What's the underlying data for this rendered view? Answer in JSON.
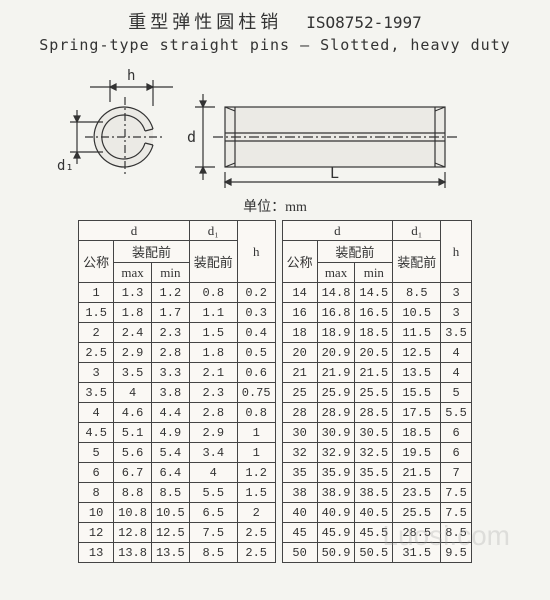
{
  "header": {
    "title_cn": "重型弹性圆柱销",
    "standard_code": "ISO8752-1997",
    "title_en": "Spring-type straight pins — Slotted, heavy duty"
  },
  "diagram": {
    "labels": {
      "h": "h",
      "d1": "d₁",
      "d": "d",
      "L": "L"
    },
    "stroke": "#333",
    "fill": "#ebeae5"
  },
  "unit_label": "单位：mm",
  "table_headers": {
    "d": "d",
    "nominal": "公称",
    "before_assembly": "装配前",
    "max": "max",
    "min": "min",
    "d1": "d₁",
    "d1_before": "装配前",
    "h": "h"
  },
  "left_rows": [
    {
      "nom": "1",
      "max": "1.3",
      "min": "1.2",
      "d1": "0.8",
      "h": "0.2"
    },
    {
      "nom": "1.5",
      "max": "1.8",
      "min": "1.7",
      "d1": "1.1",
      "h": "0.3"
    },
    {
      "nom": "2",
      "max": "2.4",
      "min": "2.3",
      "d1": "1.5",
      "h": "0.4"
    },
    {
      "nom": "2.5",
      "max": "2.9",
      "min": "2.8",
      "d1": "1.8",
      "h": "0.5"
    },
    {
      "nom": "3",
      "max": "3.5",
      "min": "3.3",
      "d1": "2.1",
      "h": "0.6"
    },
    {
      "nom": "3.5",
      "max": "4",
      "min": "3.8",
      "d1": "2.3",
      "h": "0.75"
    },
    {
      "nom": "4",
      "max": "4.6",
      "min": "4.4",
      "d1": "2.8",
      "h": "0.8"
    },
    {
      "nom": "4.5",
      "max": "5.1",
      "min": "4.9",
      "d1": "2.9",
      "h": "1"
    },
    {
      "nom": "5",
      "max": "5.6",
      "min": "5.4",
      "d1": "3.4",
      "h": "1"
    },
    {
      "nom": "6",
      "max": "6.7",
      "min": "6.4",
      "d1": "4",
      "h": "1.2"
    },
    {
      "nom": "8",
      "max": "8.8",
      "min": "8.5",
      "d1": "5.5",
      "h": "1.5"
    },
    {
      "nom": "10",
      "max": "10.8",
      "min": "10.5",
      "d1": "6.5",
      "h": "2"
    },
    {
      "nom": "12",
      "max": "12.8",
      "min": "12.5",
      "d1": "7.5",
      "h": "2.5"
    },
    {
      "nom": "13",
      "max": "13.8",
      "min": "13.5",
      "d1": "8.5",
      "h": "2.5"
    }
  ],
  "right_rows": [
    {
      "nom": "14",
      "max": "14.8",
      "min": "14.5",
      "d1": "8.5",
      "h": "3"
    },
    {
      "nom": "16",
      "max": "16.8",
      "min": "16.5",
      "d1": "10.5",
      "h": "3"
    },
    {
      "nom": "18",
      "max": "18.9",
      "min": "18.5",
      "d1": "11.5",
      "h": "3.5"
    },
    {
      "nom": "20",
      "max": "20.9",
      "min": "20.5",
      "d1": "12.5",
      "h": "4"
    },
    {
      "nom": "21",
      "max": "21.9",
      "min": "21.5",
      "d1": "13.5",
      "h": "4"
    },
    {
      "nom": "25",
      "max": "25.9",
      "min": "25.5",
      "d1": "15.5",
      "h": "5"
    },
    {
      "nom": "28",
      "max": "28.9",
      "min": "28.5",
      "d1": "17.5",
      "h": "5.5"
    },
    {
      "nom": "30",
      "max": "30.9",
      "min": "30.5",
      "d1": "18.5",
      "h": "6"
    },
    {
      "nom": "32",
      "max": "32.9",
      "min": "32.5",
      "d1": "19.5",
      "h": "6"
    },
    {
      "nom": "35",
      "max": "35.9",
      "min": "35.5",
      "d1": "21.5",
      "h": "7"
    },
    {
      "nom": "38",
      "max": "38.9",
      "min": "38.5",
      "d1": "23.5",
      "h": "7.5"
    },
    {
      "nom": "40",
      "max": "40.9",
      "min": "40.5",
      "d1": "25.5",
      "h": "7.5"
    },
    {
      "nom": "45",
      "max": "45.9",
      "min": "45.5",
      "d1": "28.5",
      "h": "8.5"
    },
    {
      "nom": "50",
      "max": "50.9",
      "min": "50.5",
      "d1": "31.5",
      "h": "9.5"
    }
  ],
  "watermark": "Luosi.com"
}
